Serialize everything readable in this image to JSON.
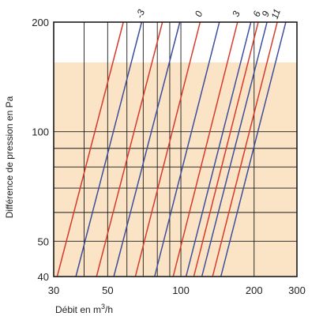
{
  "chart_data": {
    "type": "line",
    "xscale": "log",
    "yscale": "log",
    "xlim": [
      30,
      300
    ],
    "ylim": [
      40,
      200
    ],
    "x_ticks": [
      30,
      50,
      100,
      200,
      300
    ],
    "x_tick_labels": [
      "30",
      "50",
      "100",
      "200",
      "300"
    ],
    "y_ticks": [
      40,
      50,
      100,
      200
    ],
    "y_tick_labels": [
      "40",
      "50",
      "100",
      "200"
    ],
    "x_minor_grid": [
      30,
      40,
      50,
      60,
      70,
      80,
      90,
      100,
      200,
      300
    ],
    "y_minor_grid": [
      40,
      50,
      60,
      70,
      80,
      90,
      100,
      200
    ],
    "ylabel": "Différence de pression en Pa",
    "xlabel_prefix": "Débit en m",
    "xlabel_sup": "3",
    "xlabel_suffix": "/h",
    "grid": true,
    "shaded_region": {
      "y_max": 155,
      "color": "#fbe3c6"
    },
    "colors": {
      "red": "#d63a2b",
      "blue": "#3b4f9c",
      "grid": "#1a1a1a"
    },
    "series": [
      {
        "color": "red",
        "label": "",
        "points": [
          [
            31,
            40
          ],
          [
            58,
            200
          ]
        ]
      },
      {
        "color": "blue",
        "label": "-3",
        "points": [
          [
            37,
            40
          ],
          [
            69,
            200
          ]
        ]
      },
      {
        "color": "red",
        "label": "",
        "points": [
          [
            45,
            40
          ],
          [
            84,
            200
          ]
        ]
      },
      {
        "color": "blue",
        "label": "",
        "points": [
          [
            53,
            40
          ],
          [
            99,
            200
          ]
        ]
      },
      {
        "color": "red",
        "label": "0",
        "points": [
          [
            65,
            40
          ],
          [
            120,
            200
          ]
        ]
      },
      {
        "color": "blue",
        "label": "",
        "points": [
          [
            78,
            40
          ],
          [
            144,
            200
          ]
        ]
      },
      {
        "color": "red",
        "label": "3",
        "points": [
          [
            93,
            40
          ],
          [
            171,
            200
          ]
        ]
      },
      {
        "color": "blue",
        "label": "",
        "points": [
          [
            105,
            40
          ],
          [
            194,
            200
          ]
        ]
      },
      {
        "color": "red",
        "label": "6",
        "points": [
          [
            113,
            40
          ],
          [
            208,
            200
          ]
        ]
      },
      {
        "color": "blue",
        "label": "9",
        "points": [
          [
            122,
            40
          ],
          [
            226,
            200
          ]
        ]
      },
      {
        "color": "red",
        "label": "11",
        "points": [
          [
            135,
            40
          ],
          [
            249,
            200
          ]
        ]
      },
      {
        "color": "blue",
        "label": "",
        "points": [
          [
            146,
            40
          ],
          [
            270,
            200
          ]
        ]
      }
    ]
  }
}
